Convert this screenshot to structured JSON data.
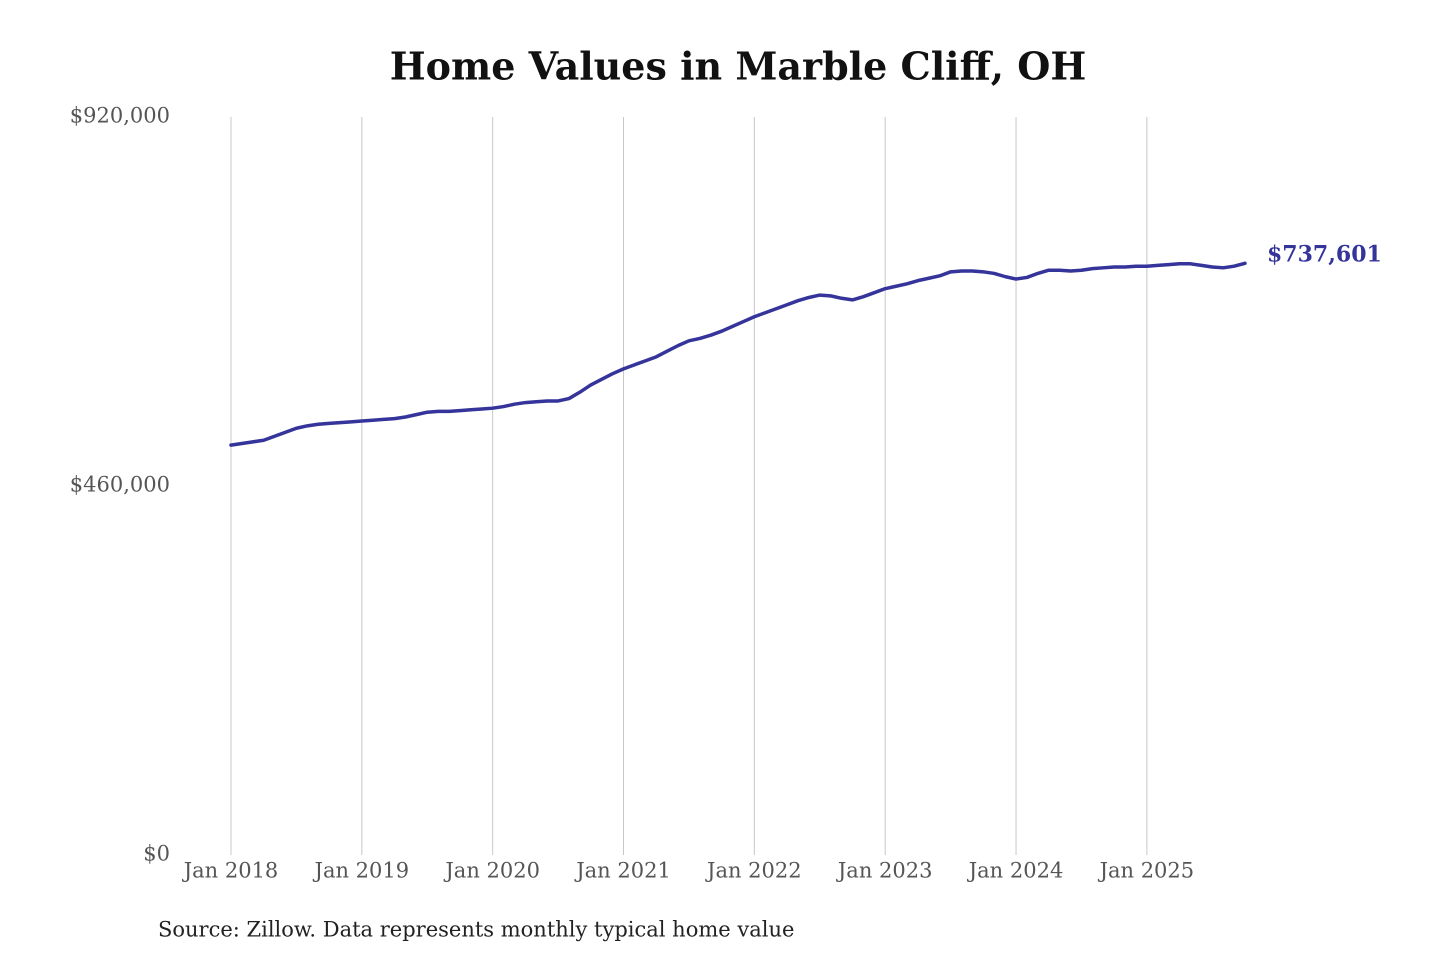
{
  "chart_data": {
    "type": "line",
    "title": "Home Values in Marble Cliff, OH",
    "source": "Source: Zillow. Data represents monthly typical home value",
    "x": [
      "2018-01",
      "2018-02",
      "2018-03",
      "2018-04",
      "2018-05",
      "2018-06",
      "2018-07",
      "2018-08",
      "2018-09",
      "2018-10",
      "2018-11",
      "2018-12",
      "2019-01",
      "2019-02",
      "2019-03",
      "2019-04",
      "2019-05",
      "2019-06",
      "2019-07",
      "2019-08",
      "2019-09",
      "2019-10",
      "2019-11",
      "2019-12",
      "2020-01",
      "2020-02",
      "2020-03",
      "2020-04",
      "2020-05",
      "2020-06",
      "2020-07",
      "2020-08",
      "2020-09",
      "2020-10",
      "2020-11",
      "2020-12",
      "2021-01",
      "2021-02",
      "2021-03",
      "2021-04",
      "2021-05",
      "2021-06",
      "2021-07",
      "2021-08",
      "2021-09",
      "2021-10",
      "2021-11",
      "2021-12",
      "2022-01",
      "2022-02",
      "2022-03",
      "2022-04",
      "2022-05",
      "2022-06",
      "2022-07",
      "2022-08",
      "2022-09",
      "2022-10",
      "2022-11",
      "2022-12",
      "2023-01",
      "2023-02",
      "2023-03",
      "2023-04",
      "2023-05",
      "2023-06",
      "2023-07",
      "2023-08",
      "2023-09",
      "2023-10",
      "2023-11",
      "2023-12",
      "2024-01",
      "2024-02",
      "2024-03",
      "2024-04",
      "2024-05",
      "2024-06",
      "2024-07",
      "2024-08",
      "2024-09",
      "2024-10",
      "2024-11",
      "2024-12",
      "2025-01",
      "2025-02",
      "2025-03",
      "2025-04",
      "2025-05",
      "2025-06",
      "2025-07",
      "2025-08",
      "2025-09",
      "2025-10"
    ],
    "series": [
      {
        "color": "#35349a",
        "values": [
          511000,
          513000,
          515000,
          517000,
          522000,
          527000,
          532000,
          535000,
          537000,
          538000,
          539000,
          540000,
          541000,
          542000,
          543000,
          544000,
          546000,
          549000,
          552000,
          553000,
          553000,
          554000,
          555000,
          556000,
          557000,
          559000,
          562000,
          564000,
          565000,
          566000,
          566000,
          569000,
          577000,
          586000,
          593000,
          600000,
          606000,
          611000,
          616000,
          621000,
          628000,
          635000,
          641000,
          644000,
          648000,
          653000,
          659000,
          665000,
          671000,
          676000,
          681000,
          686000,
          691000,
          695000,
          698000,
          697000,
          694000,
          692000,
          696000,
          701000,
          706000,
          709000,
          712000,
          716000,
          719000,
          722000,
          727000,
          728000,
          728000,
          727000,
          725000,
          721000,
          718000,
          720000,
          725000,
          729000,
          729000,
          728000,
          729000,
          731000,
          732000,
          733000,
          733000,
          734000,
          734000,
          735000,
          736000,
          737000,
          737000,
          735000,
          733000,
          732000,
          734000,
          737601
        ],
        "value_labels": [
          null,
          null,
          null,
          null,
          null,
          null,
          null,
          null,
          null,
          null,
          null,
          null,
          null,
          null,
          null,
          null,
          null,
          null,
          null,
          null,
          null,
          null,
          null,
          null,
          null,
          null,
          null,
          null,
          null,
          null,
          null,
          null,
          null,
          null,
          null,
          null,
          null,
          null,
          null,
          null,
          null,
          null,
          null,
          null,
          null,
          null,
          null,
          null,
          null,
          null,
          null,
          null,
          null,
          null,
          null,
          null,
          null,
          null,
          null,
          null,
          null,
          null,
          null,
          null,
          null,
          null,
          null,
          null,
          null,
          null,
          null,
          null,
          null,
          null,
          null,
          null,
          null,
          null,
          null,
          null,
          null,
          null,
          null,
          null,
          null,
          null,
          null,
          null,
          null,
          null,
          null,
          null,
          null,
          "$737,601"
        ]
      }
    ],
    "xlim": [
      "2018-01",
      "2025-10"
    ],
    "xticks": [
      {
        "value": "2018-01",
        "label": "Jan 2018"
      },
      {
        "value": "2019-01",
        "label": "Jan 2019"
      },
      {
        "value": "2020-01",
        "label": "Jan 2020"
      },
      {
        "value": "2021-01",
        "label": "Jan 2021"
      },
      {
        "value": "2022-01",
        "label": "Jan 2022"
      },
      {
        "value": "2023-01",
        "label": "Jan 2023"
      },
      {
        "value": "2024-01",
        "label": "Jan 2024"
      },
      {
        "value": "2025-01",
        "label": "Jan 2025"
      }
    ],
    "ylim": [
      0,
      920000
    ],
    "yticks": [
      {
        "value": 0,
        "label": "$0"
      },
      {
        "value": 460000,
        "label": "$460,000"
      },
      {
        "value": 920000,
        "label": "$920,000"
      }
    ],
    "grid": "x"
  }
}
